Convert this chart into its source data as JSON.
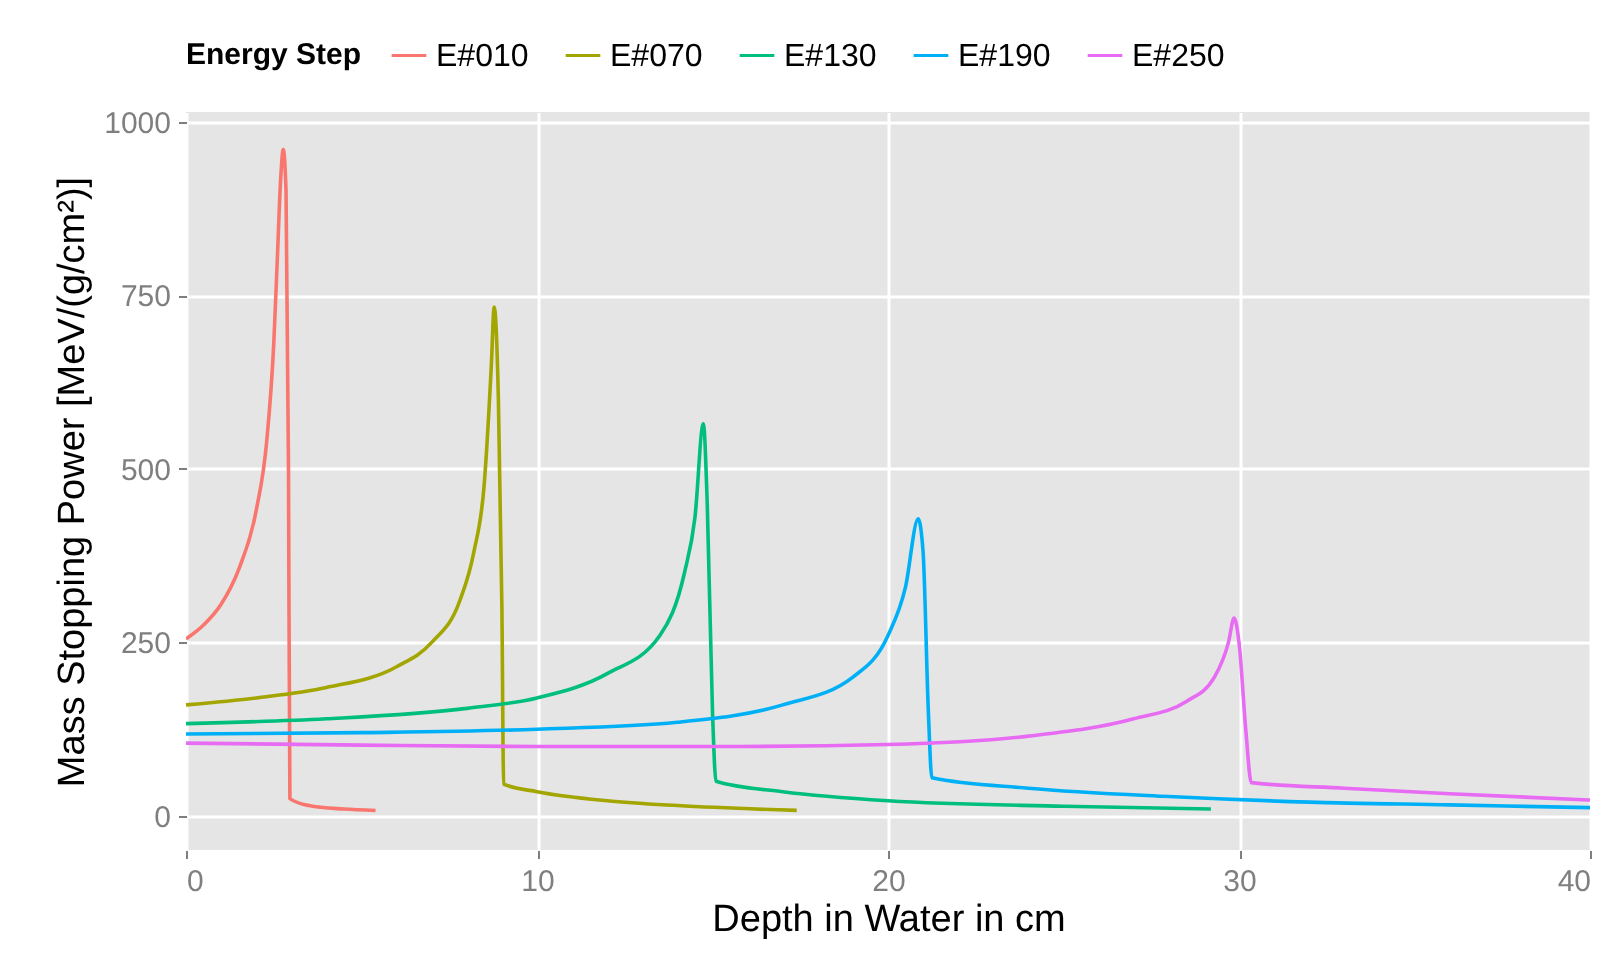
{
  "chart_data": {
    "type": "line",
    "xlabel": "Depth in Water in cm",
    "ylabel": "Mass Stopping Power [MeV/(g/cm²)]",
    "legend_title": "Energy Step",
    "legend": "top",
    "grid": true,
    "xlim": [
      0,
      40
    ],
    "xticks": [
      0,
      10,
      20,
      30,
      40
    ],
    "ylim": [
      -49,
      1014
    ],
    "yticks": [
      0,
      250,
      500,
      750,
      1000
    ],
    "series": [
      {
        "name": "E#010",
        "color": "#f8766d",
        "x": [
          0,
          0.5,
          1.0,
          1.5,
          2.0,
          2.3,
          2.5,
          2.6,
          2.7,
          2.77,
          2.85,
          2.92,
          2.96,
          3.5,
          4.5,
          5.4
        ],
        "values": [
          255,
          275,
          305,
          355,
          440,
          540,
          680,
          800,
          920,
          960,
          900,
          500,
          25,
          15,
          10,
          8
        ]
      },
      {
        "name": "E#070",
        "color": "#a3a500",
        "x": [
          0,
          2,
          4,
          6,
          7,
          7.8,
          8.2,
          8.5,
          8.7,
          8.78,
          8.9,
          9.0,
          9.05,
          10,
          12,
          14,
          17.4
        ],
        "values": [
          160,
          170,
          185,
          215,
          250,
          310,
          380,
          480,
          650,
          733,
          600,
          300,
          46,
          35,
          22,
          15,
          8
        ]
      },
      {
        "name": "E#130",
        "color": "#00bf7d",
        "x": [
          0,
          4,
          8,
          10,
          12,
          13.5,
          14.2,
          14.5,
          14.74,
          14.85,
          15.0,
          15.1,
          17,
          20,
          25,
          29.2
        ],
        "values": [
          133,
          140,
          155,
          170,
          205,
          260,
          350,
          430,
          565,
          450,
          150,
          50,
          35,
          22,
          14,
          10
        ]
      },
      {
        "name": "E#190",
        "color": "#00b0f6",
        "x": [
          0,
          5,
          10,
          14,
          17,
          19,
          20,
          20.5,
          20.86,
          21.0,
          21.15,
          21.25,
          24,
          28,
          32,
          36,
          40
        ],
        "values": [
          118,
          120,
          125,
          135,
          160,
          200,
          260,
          330,
          428,
          380,
          150,
          55,
          40,
          28,
          20,
          16,
          12
        ]
      },
      {
        "name": "E#250",
        "color": "#e76bf3",
        "x": [
          0,
          5,
          10,
          15,
          20,
          24,
          27,
          28.5,
          29.3,
          29.7,
          29.86,
          30.0,
          30.2,
          30.35,
          33,
          36,
          40
        ],
        "values": [
          105,
          102,
          100,
          100,
          103,
          115,
          140,
          165,
          200,
          250,
          285,
          250,
          120,
          48,
          40,
          32,
          23
        ]
      }
    ]
  }
}
